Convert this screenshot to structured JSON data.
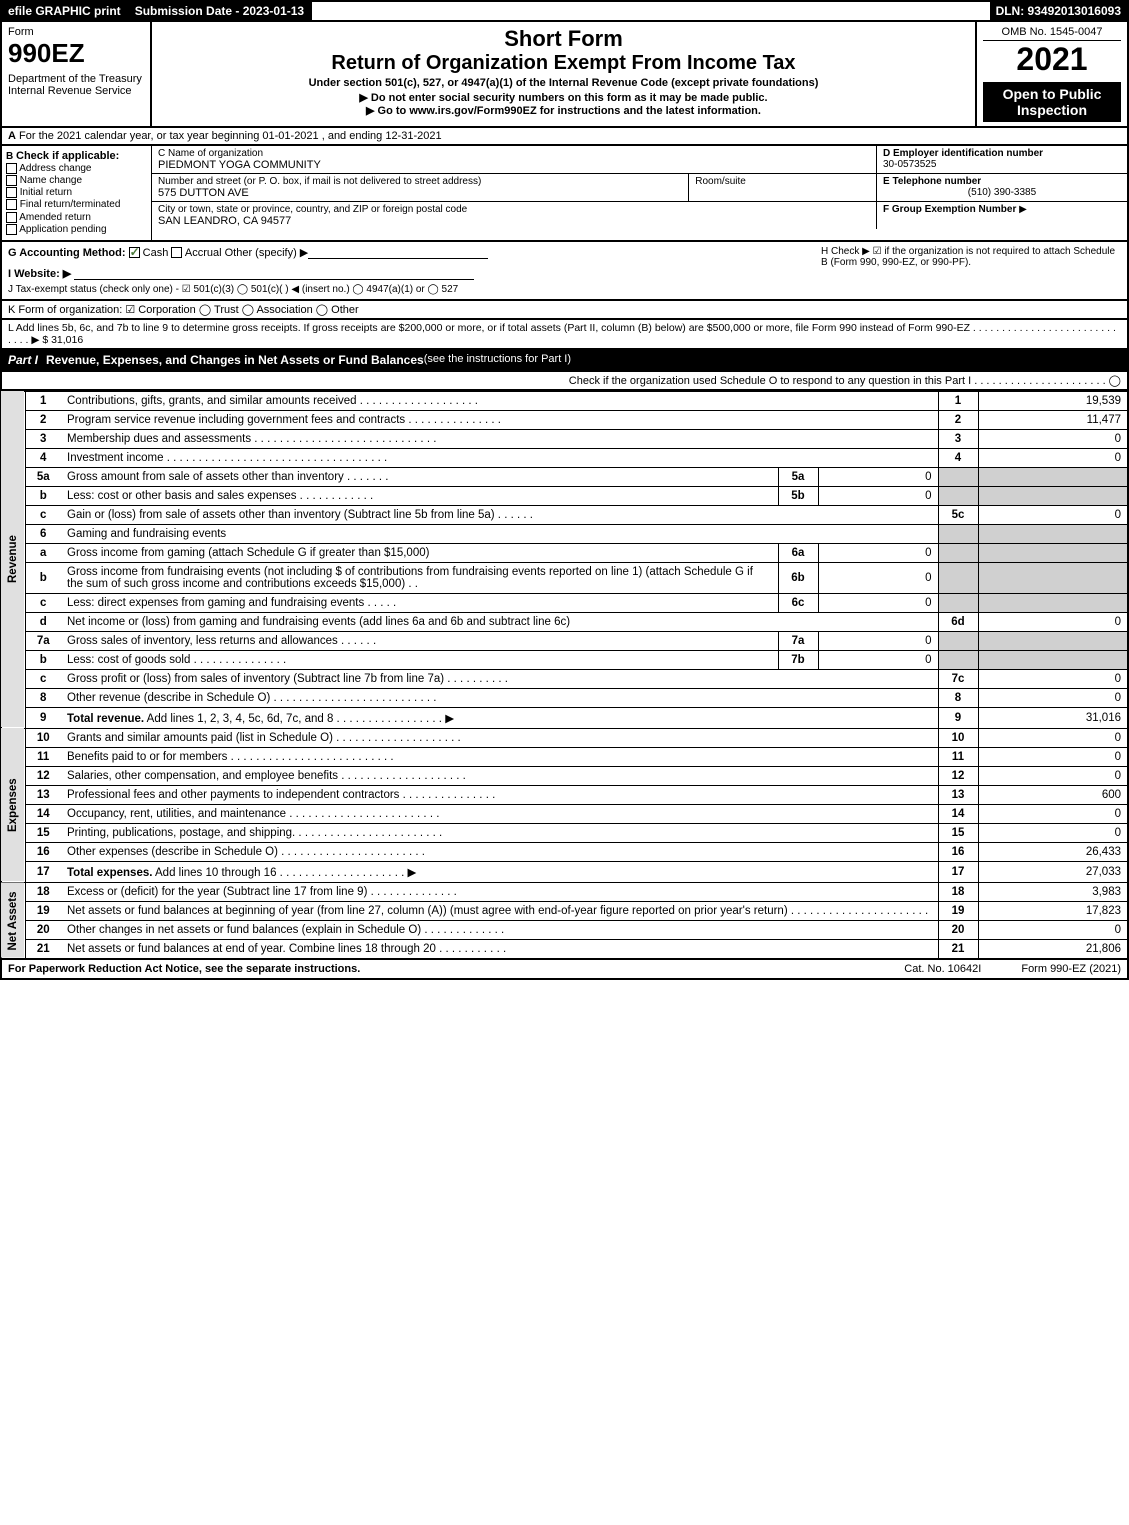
{
  "top": {
    "efile_label": "efile GRAPHIC print",
    "submission_label": "Submission Date - 2023-01-13",
    "dln": "DLN: 93492013016093"
  },
  "header": {
    "form_label": "Form",
    "form_number": "990EZ",
    "dept": "Department of the Treasury\nInternal Revenue Service",
    "short_form": "Short Form",
    "return_title": "Return of Organization Exempt From Income Tax",
    "subtitle": "Under section 501(c), 527, or 4947(a)(1) of the Internal Revenue Code (except private foundations)",
    "no_ssn": "▶ Do not enter social security numbers on this form as it may be made public.",
    "goto": "▶ Go to www.irs.gov/Form990EZ for instructions and the latest information.",
    "omb": "OMB No. 1545-0047",
    "tax_year": "2021",
    "open": "Open to Public Inspection"
  },
  "section_a": {
    "label": "A",
    "text": "For the 2021 calendar year, or tax year beginning 01-01-2021 , and ending 12-31-2021"
  },
  "section_b": {
    "label": "B",
    "title": "Check if applicable:",
    "options": [
      "Address change",
      "Name change",
      "Initial return",
      "Final return/terminated",
      "Amended return",
      "Application pending"
    ]
  },
  "section_c": {
    "name_label": "C Name of organization",
    "name": "PIEDMONT YOGA COMMUNITY",
    "street_label": "Number and street (or P. O. box, if mail is not delivered to street address)",
    "street": "575 DUTTON AVE",
    "room_label": "Room/suite",
    "city_label": "City or town, state or province, country, and ZIP or foreign postal code",
    "city": "SAN LEANDRO, CA  94577"
  },
  "section_d": {
    "label": "D Employer identification number",
    "value": "30-0573525"
  },
  "section_e": {
    "label": "E Telephone number",
    "value": "(510) 390-3385"
  },
  "section_f": {
    "label": "F Group Exemption Number",
    "arrow": "▶"
  },
  "section_g": {
    "label": "G Accounting Method:",
    "cash": "Cash",
    "accrual": "Accrual",
    "other": "Other (specify) ▶"
  },
  "section_h": {
    "text": "H  Check ▶ ☑ if the organization is not required to attach Schedule B (Form 990, 990-EZ, or 990-PF)."
  },
  "section_i": {
    "label": "I Website: ▶"
  },
  "section_j": {
    "text": "J Tax-exempt status (check only one) - ☑ 501(c)(3) ◯ 501(c)(  ) ◀ (insert no.) ◯ 4947(a)(1) or ◯ 527"
  },
  "section_k": {
    "text": "K Form of organization: ☑ Corporation  ◯ Trust  ◯ Association  ◯ Other"
  },
  "section_l": {
    "text": "L Add lines 5b, 6c, and 7b to line 9 to determine gross receipts. If gross receipts are $200,000 or more, or if total assets (Part II, column (B) below) are $500,000 or more, file Form 990 instead of Form 990-EZ .  .  .  .  .  .  .  .  .  .  .  .  .  .  .  .  .  .  .  .  .  .  .  .  .  .  .  .  .  ▶ $ 31,016"
  },
  "part1": {
    "label": "Part I",
    "title": "Revenue, Expenses, and Changes in Net Assets or Fund Balances",
    "subtitle": " (see the instructions for Part I)",
    "check_o": "Check if the organization used Schedule O to respond to any question in this Part I .  .  .  .  .  .  .  .  .  .  .  .  .  .  .  .  .  .  .  .  .  .  ◯"
  },
  "revenue": {
    "side": "Revenue",
    "rows": [
      {
        "n": "1",
        "d": "Contributions, gifts, grants, and similar amounts received .  .  .  .  .  .  .  .  .  .  .  .  .  .  .  .  .  .  .",
        "rn": "1",
        "rv": "19,539"
      },
      {
        "n": "2",
        "d": "Program service revenue including government fees and contracts .  .  .  .  .  .  .  .  .  .  .  .  .  .  .",
        "rn": "2",
        "rv": "11,477"
      },
      {
        "n": "3",
        "d": "Membership dues and assessments .  .  .  .  .  .  .  .  .  .  .  .  .  .  .  .  .  .  .  .  .  .  .  .  .  .  .  .  .",
        "rn": "3",
        "rv": "0"
      },
      {
        "n": "4",
        "d": "Investment income .  .  .  .  .  .  .  .  .  .  .  .  .  .  .  .  .  .  .  .  .  .  .  .  .  .  .  .  .  .  .  .  .  .  .",
        "rn": "4",
        "rv": "0"
      },
      {
        "n": "5a",
        "d": "Gross amount from sale of assets other than inventory .  .  .  .  .  .  .",
        "sn": "5a",
        "sv": "0"
      },
      {
        "n": "b",
        "d": "Less: cost or other basis and sales expenses .  .  .  .  .  .  .  .  .  .  .  .",
        "sn": "5b",
        "sv": "0"
      },
      {
        "n": "c",
        "d": "Gain or (loss) from sale of assets other than inventory (Subtract line 5b from line 5a)  .  .  .  .  .  .",
        "rn": "5c",
        "rv": "0"
      },
      {
        "n": "6",
        "d": "Gaming and fundraising events"
      },
      {
        "n": "a",
        "d": "Gross income from gaming (attach Schedule G if greater than $15,000)",
        "sn": "6a",
        "sv": "0"
      },
      {
        "n": "b",
        "d": "Gross income from fundraising events (not including $                    of contributions from fundraising events reported on line 1) (attach Schedule G if the sum of such gross income and contributions exceeds $15,000)   .   .",
        "sn": "6b",
        "sv": "0"
      },
      {
        "n": "c",
        "d": "Less: direct expenses from gaming and fundraising events  .  .  .  .  .",
        "sn": "6c",
        "sv": "0"
      },
      {
        "n": "d",
        "d": "Net income or (loss) from gaming and fundraising events (add lines 6a and 6b and subtract line 6c)",
        "rn": "6d",
        "rv": "0"
      },
      {
        "n": "7a",
        "d": "Gross sales of inventory, less returns and allowances .  .  .  .  .  .",
        "sn": "7a",
        "sv": "0"
      },
      {
        "n": "b",
        "d": "Less: cost of goods sold       .  .  .  .  .  .  .  .  .  .  .  .  .  .  .",
        "sn": "7b",
        "sv": "0"
      },
      {
        "n": "c",
        "d": "Gross profit or (loss) from sales of inventory (Subtract line 7b from line 7a) .  .  .  .  .  .  .  .  .  .",
        "rn": "7c",
        "rv": "0"
      },
      {
        "n": "8",
        "d": "Other revenue (describe in Schedule O) .  .  .  .  .  .  .  .  .  .  .  .  .  .  .  .  .  .  .  .  .  .  .  .  .  .",
        "rn": "8",
        "rv": "0"
      },
      {
        "n": "9",
        "d": "Total revenue. Add lines 1, 2, 3, 4, 5c, 6d, 7c, and 8  .  .  .  .  .  .  .  .  .  .  .  .  .  .  .  .  .  ▶",
        "rn": "9",
        "rv": "31,016",
        "bold": true
      }
    ]
  },
  "expenses": {
    "side": "Expenses",
    "rows": [
      {
        "n": "10",
        "d": "Grants and similar amounts paid (list in Schedule O) .  .  .  .  .  .  .  .  .  .  .  .  .  .  .  .  .  .  .  .",
        "rn": "10",
        "rv": "0"
      },
      {
        "n": "11",
        "d": "Benefits paid to or for members      .  .  .  .  .  .  .  .  .  .  .  .  .  .  .  .  .  .  .  .  .  .  .  .  .  .",
        "rn": "11",
        "rv": "0"
      },
      {
        "n": "12",
        "d": "Salaries, other compensation, and employee benefits .  .  .  .  .  .  .  .  .  .  .  .  .  .  .  .  .  .  .  .",
        "rn": "12",
        "rv": "0"
      },
      {
        "n": "13",
        "d": "Professional fees and other payments to independent contractors .  .  .  .  .  .  .  .  .  .  .  .  .  .  .",
        "rn": "13",
        "rv": "600"
      },
      {
        "n": "14",
        "d": "Occupancy, rent, utilities, and maintenance .  .  .  .  .  .  .  .  .  .  .  .  .  .  .  .  .  .  .  .  .  .  .  .",
        "rn": "14",
        "rv": "0"
      },
      {
        "n": "15",
        "d": "Printing, publications, postage, and shipping.  .  .  .  .  .  .  .  .  .  .  .  .  .  .  .  .  .  .  .  .  .  .  .",
        "rn": "15",
        "rv": "0"
      },
      {
        "n": "16",
        "d": "Other expenses (describe in Schedule O)      .  .  .  .  .  .  .  .  .  .  .  .  .  .  .  .  .  .  .  .  .  .  .",
        "rn": "16",
        "rv": "26,433"
      },
      {
        "n": "17",
        "d": "Total expenses. Add lines 10 through 16      .  .  .  .  .  .  .  .  .  .  .  .  .  .  .  .  .  .  .  .  ▶",
        "rn": "17",
        "rv": "27,033",
        "bold": true
      }
    ]
  },
  "netassets": {
    "side": "Net Assets",
    "rows": [
      {
        "n": "18",
        "d": "Excess or (deficit) for the year (Subtract line 17 from line 9)       .  .  .  .  .  .  .  .  .  .  .  .  .  .",
        "rn": "18",
        "rv": "3,983"
      },
      {
        "n": "19",
        "d": "Net assets or fund balances at beginning of year (from line 27, column (A)) (must agree with end-of-year figure reported on prior year's return) .  .  .  .  .  .  .  .  .  .  .  .  .  .  .  .  .  .  .  .  .  .",
        "rn": "19",
        "rv": "17,823"
      },
      {
        "n": "20",
        "d": "Other changes in net assets or fund balances (explain in Schedule O) .  .  .  .  .  .  .  .  .  .  .  .  .",
        "rn": "20",
        "rv": "0"
      },
      {
        "n": "21",
        "d": "Net assets or fund balances at end of year. Combine lines 18 through 20 .  .  .  .  .  .  .  .  .  .  .",
        "rn": "21",
        "rv": "21,806"
      }
    ]
  },
  "footer": {
    "left": "For Paperwork Reduction Act Notice, see the separate instructions.",
    "center": "Cat. No. 10642I",
    "right": "Form 990-EZ (2021)"
  },
  "colors": {
    "black": "#000000",
    "white": "#ffffff",
    "shade": "#d0d0d0",
    "check_green": "#4a7a3a",
    "link": "#0066cc"
  }
}
